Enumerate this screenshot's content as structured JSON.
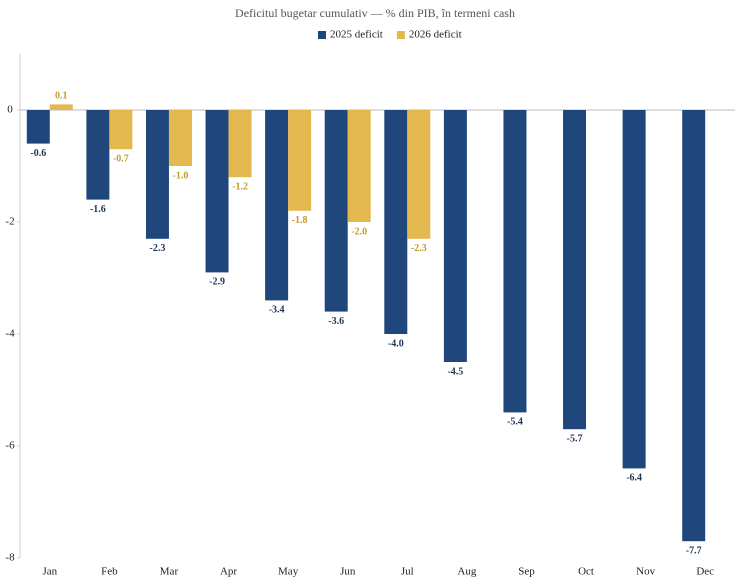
{
  "chart_data": {
    "type": "bar",
    "title": "Deficitul bugetar cumulativ — % din PIB, în termeni cash",
    "categories": [
      "Jan",
      "Feb",
      "Mar",
      "Apr",
      "May",
      "Jun",
      "Jul",
      "Aug",
      "Sep",
      "Oct",
      "Nov",
      "Dec"
    ],
    "series": [
      {
        "name": "2025 deficit",
        "color": "#1f477b",
        "values": [
          -0.6,
          -1.6,
          -2.3,
          -2.9,
          -3.4,
          -3.6,
          -4.0,
          -4.5,
          -5.4,
          -5.7,
          -6.4,
          -7.7
        ],
        "value_labels": [
          "-0.6",
          "-1.6",
          "-2.3",
          "-2.9",
          "-3.4",
          "-3.6",
          "-4.0",
          "-4.5",
          "-5.4",
          "-5.7",
          "-6.4",
          "-7.7"
        ]
      },
      {
        "name": "2026 deficit",
        "color": "#e2b84f",
        "values": [
          0.1,
          -0.7,
          -1.0,
          -1.2,
          -1.8,
          -2.0,
          -2.3,
          null,
          null,
          null,
          null,
          null
        ],
        "value_labels": [
          "0.1",
          "-0.7",
          "-1.0",
          "-1.2",
          "-1.8",
          "-2.0",
          "-2.3",
          null,
          null,
          null,
          null,
          null
        ]
      }
    ],
    "ylim": [
      -8,
      1
    ],
    "yticks": [
      0,
      -2,
      -4,
      -6,
      -8
    ],
    "legend": "top"
  }
}
